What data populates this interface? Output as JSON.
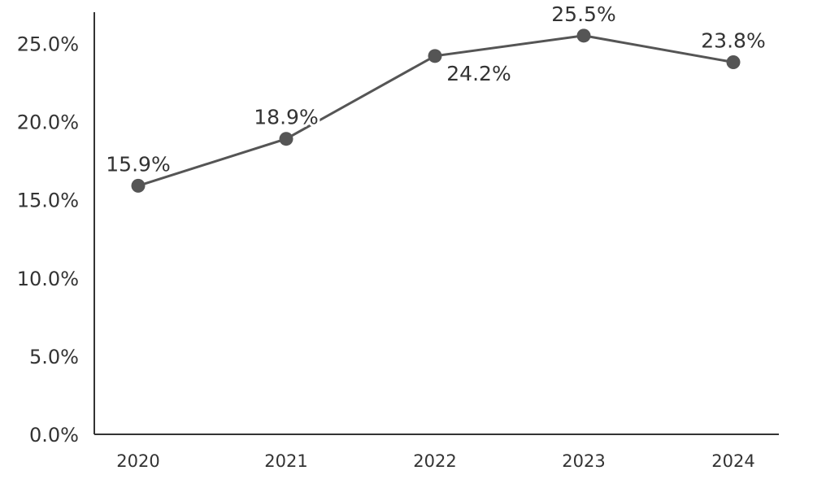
{
  "chart_data": {
    "type": "line",
    "title": "",
    "xlabel": "",
    "ylabel": "",
    "categories": [
      "2020",
      "2021",
      "2022",
      "2023",
      "2024"
    ],
    "series": [
      {
        "values": [
          15.9,
          18.9,
          24.2,
          25.5,
          23.8
        ],
        "labels": [
          "15.9%",
          "18.9%",
          "24.2%",
          "25.5%",
          "23.8%"
        ]
      }
    ],
    "ylim": [
      0,
      27
    ],
    "y_ticks": [
      0,
      5,
      10,
      15,
      20,
      25
    ],
    "y_tick_labels": [
      "0.0%",
      "5.0%",
      "10.0%",
      "15.0%",
      "20.0%",
      "25.0%"
    ],
    "grid": false,
    "legend": "none",
    "line_color": "#555555",
    "axis_color": "#333333"
  }
}
